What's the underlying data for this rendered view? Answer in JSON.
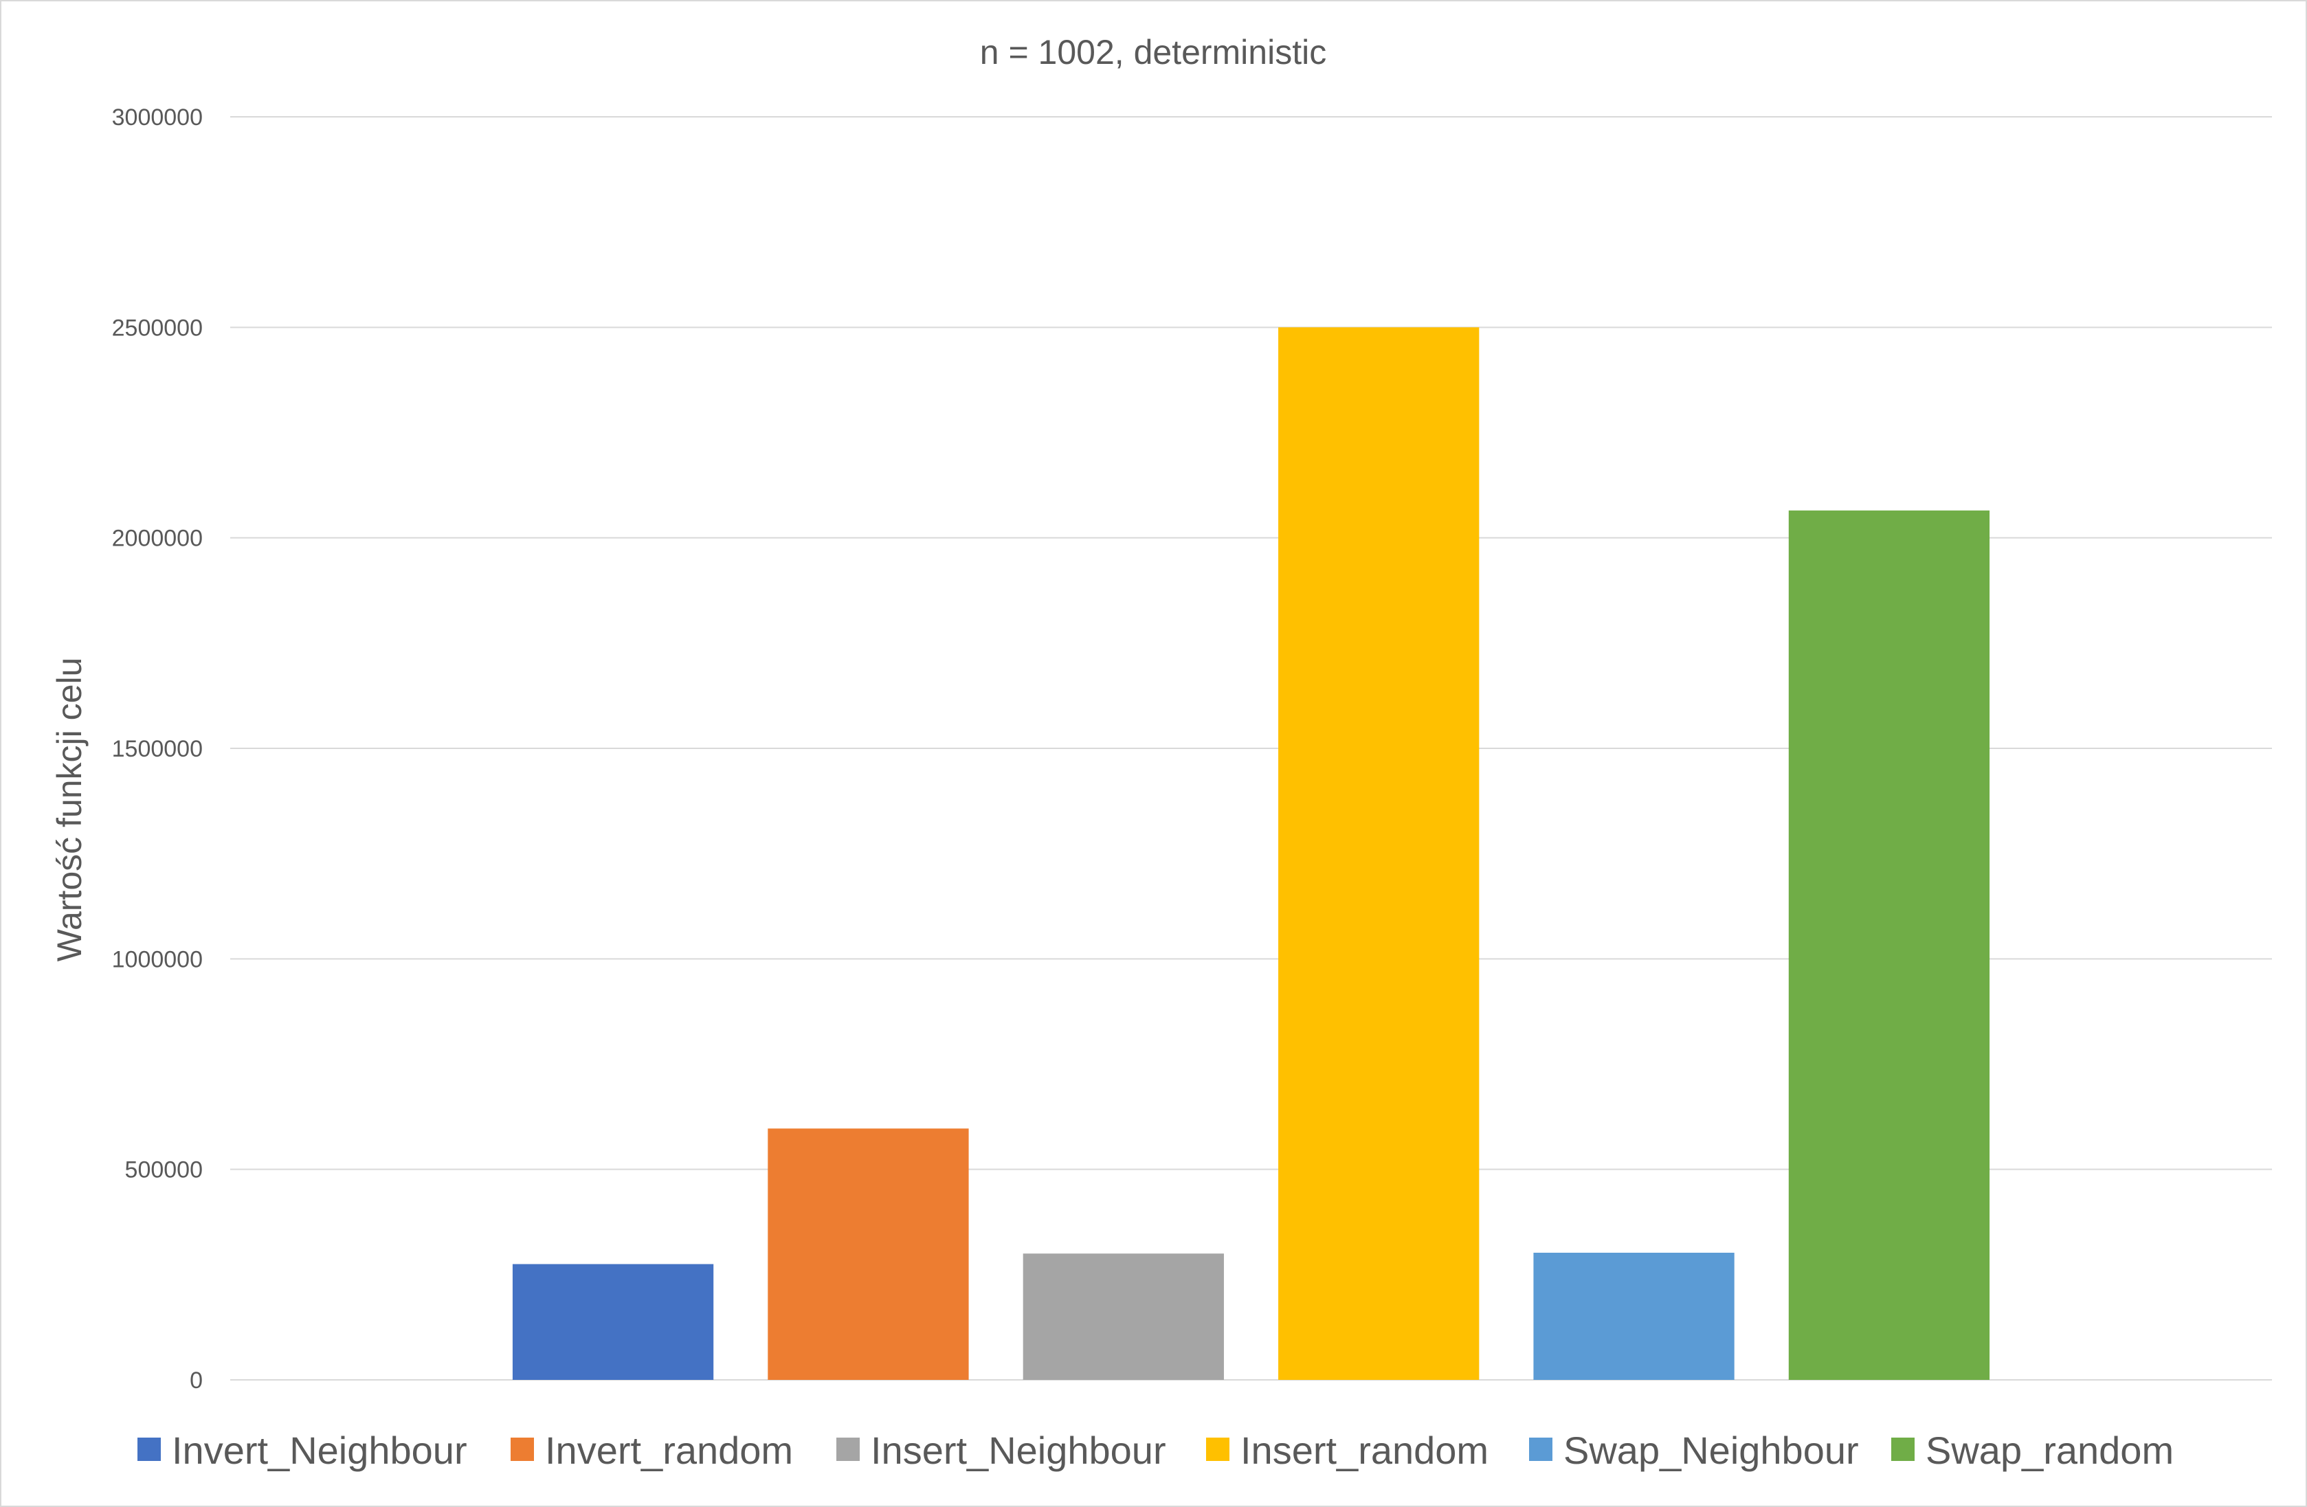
{
  "chart_data": {
    "type": "bar",
    "title": "n = 1002, deterministic",
    "xlabel": "",
    "ylabel": "Wartość funkcji celu",
    "ylim": [
      0,
      3000000
    ],
    "yticks": [
      0,
      500000,
      1000000,
      1500000,
      2000000,
      2500000,
      3000000
    ],
    "ytick_labels": [
      "0",
      "500000",
      "1000000",
      "1500000",
      "2000000",
      "2500000",
      "3000000"
    ],
    "grid": true,
    "legend_position": "bottom",
    "series": [
      {
        "name": "Invert_Neighbour",
        "value": 275000,
        "color": "#4472C4"
      },
      {
        "name": "Invert_random",
        "value": 597000,
        "color": "#ED7D31"
      },
      {
        "name": "Insert_Neighbour",
        "value": 300000,
        "color": "#A5A5A5"
      },
      {
        "name": "Insert_random",
        "value": 2500000,
        "color": "#FFC000"
      },
      {
        "name": "Swap_Neighbour",
        "value": 302000,
        "color": "#5B9BD5"
      },
      {
        "name": "Swap_random",
        "value": 2065000,
        "color": "#70AD47"
      }
    ]
  }
}
